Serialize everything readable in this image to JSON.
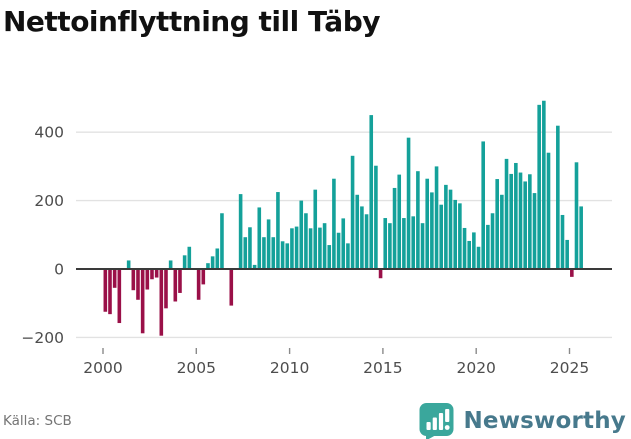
{
  "title": "Nettoinflyttning till Täby",
  "footer": {
    "source": "Källa: SCB",
    "brand": "Newsworthy"
  },
  "chart_data": {
    "type": "bar",
    "title": "Nettoinflyttning till Täby",
    "xlabel": "",
    "ylabel": "",
    "frequency": "quarterly",
    "start_period": "2000 Q1",
    "end_period": "2025 Q3",
    "ylim": [
      -220,
      560
    ],
    "grid": "horizontal",
    "y_tick_labels": [
      "400",
      "200",
      "0",
      "−200"
    ],
    "y_tick_values": [
      400,
      200,
      0,
      -200
    ],
    "x_tick_labels": [
      "2000",
      "2005",
      "2010",
      "2015",
      "2020",
      "2025"
    ],
    "x_tick_years": [
      2000,
      2005,
      2010,
      2015,
      2020,
      2025
    ],
    "positive_color": "#14a19a",
    "negative_color": "#9a1048",
    "series": [
      {
        "year": 2000,
        "q": [
          -125,
          -132,
          -55,
          -158
        ]
      },
      {
        "year": 2001,
        "q": [
          0,
          25,
          -62,
          -90
        ]
      },
      {
        "year": 2002,
        "q": [
          -188,
          -60,
          -30,
          -25
        ]
      },
      {
        "year": 2003,
        "q": [
          -195,
          -115,
          25,
          -95
        ]
      },
      {
        "year": 2004,
        "q": [
          -70,
          40,
          65,
          0
        ]
      },
      {
        "year": 2005,
        "q": [
          -90,
          -45,
          17,
          37
        ]
      },
      {
        "year": 2006,
        "q": [
          60,
          163,
          0,
          -107
        ]
      },
      {
        "year": 2007,
        "q": [
          0,
          219,
          93,
          122
        ]
      },
      {
        "year": 2008,
        "q": [
          12,
          180,
          93,
          145
        ]
      },
      {
        "year": 2009,
        "q": [
          93,
          225,
          81,
          75
        ]
      },
      {
        "year": 2010,
        "q": [
          119,
          124,
          200,
          163
        ]
      },
      {
        "year": 2011,
        "q": [
          119,
          232,
          121,
          134
        ]
      },
      {
        "year": 2012,
        "q": [
          70,
          264,
          106,
          148
        ]
      },
      {
        "year": 2013,
        "q": [
          75,
          331,
          217,
          183
        ]
      },
      {
        "year": 2014,
        "q": [
          160,
          450,
          302,
          -27
        ]
      },
      {
        "year": 2015,
        "q": [
          149,
          134,
          237,
          276
        ]
      },
      {
        "year": 2016,
        "q": [
          149,
          384,
          154,
          286
        ]
      },
      {
        "year": 2017,
        "q": [
          134,
          264,
          224,
          300
        ]
      },
      {
        "year": 2018,
        "q": [
          188,
          246,
          232,
          202
        ]
      },
      {
        "year": 2019,
        "q": [
          192,
          120,
          82,
          107
        ]
      },
      {
        "year": 2020,
        "q": [
          65,
          373,
          129,
          163
        ]
      },
      {
        "year": 2021,
        "q": [
          263,
          217,
          322,
          278
        ]
      },
      {
        "year": 2022,
        "q": [
          310,
          282,
          256,
          277
        ]
      },
      {
        "year": 2023,
        "q": [
          222,
          480,
          492,
          340
        ]
      },
      {
        "year": 2024,
        "q": [
          0,
          419,
          158,
          85
        ]
      },
      {
        "year": 2025,
        "q": [
          -23,
          312,
          183
        ]
      }
    ]
  },
  "logo": {
    "icon": "newsworthy-logo-icon",
    "color": "#3aa79c"
  }
}
